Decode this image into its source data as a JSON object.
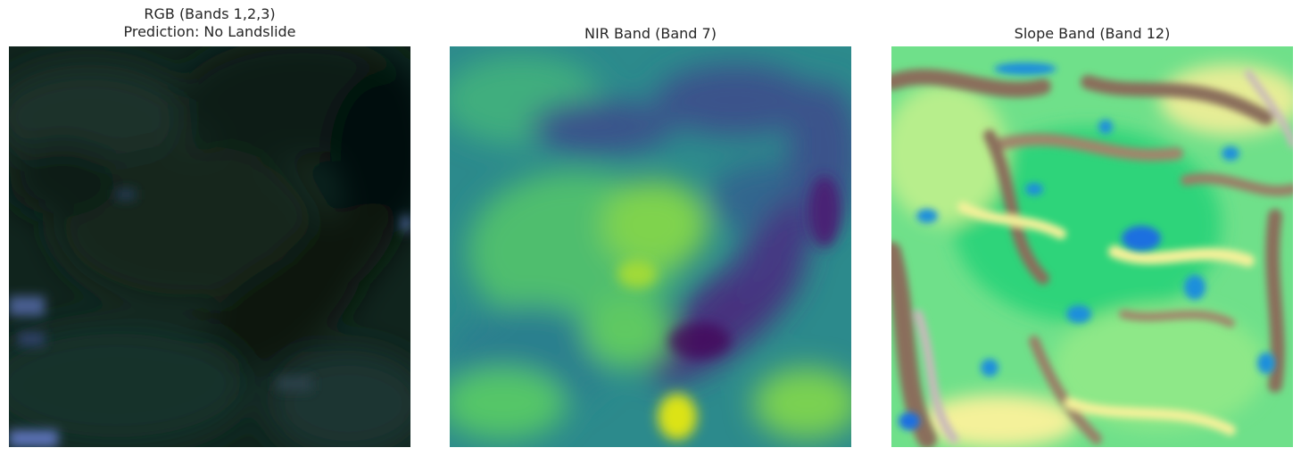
{
  "figure": {
    "panels": [
      {
        "id": "rgb",
        "title_line1": "RGB (Bands 1,2,3)",
        "title_line2": "Prediction: No Landslide",
        "image_desc": "dark-green-forest-rgb-composite",
        "palette": [
          "#0d1f1a",
          "#142a22",
          "#0a1712",
          "#1a3330",
          "#050d08",
          "#3a4f7a",
          "#5a6fb0"
        ]
      },
      {
        "id": "nir",
        "title_line1": "NIR Band (Band 7)",
        "title_line2": "",
        "image_desc": "viridis-nir-reflectance",
        "palette": [
          "#440154",
          "#3b528b",
          "#21918c",
          "#5ec962",
          "#fde725"
        ]
      },
      {
        "id": "slope",
        "title_line1": "Slope Band (Band 12)",
        "title_line2": "",
        "image_desc": "terrain-colormap-slope",
        "palette": [
          "#1e8fdb",
          "#2fd47a",
          "#84e886",
          "#f4f19a",
          "#a8916f",
          "#8a6e5c",
          "#c9b8bb"
        ]
      }
    ]
  }
}
